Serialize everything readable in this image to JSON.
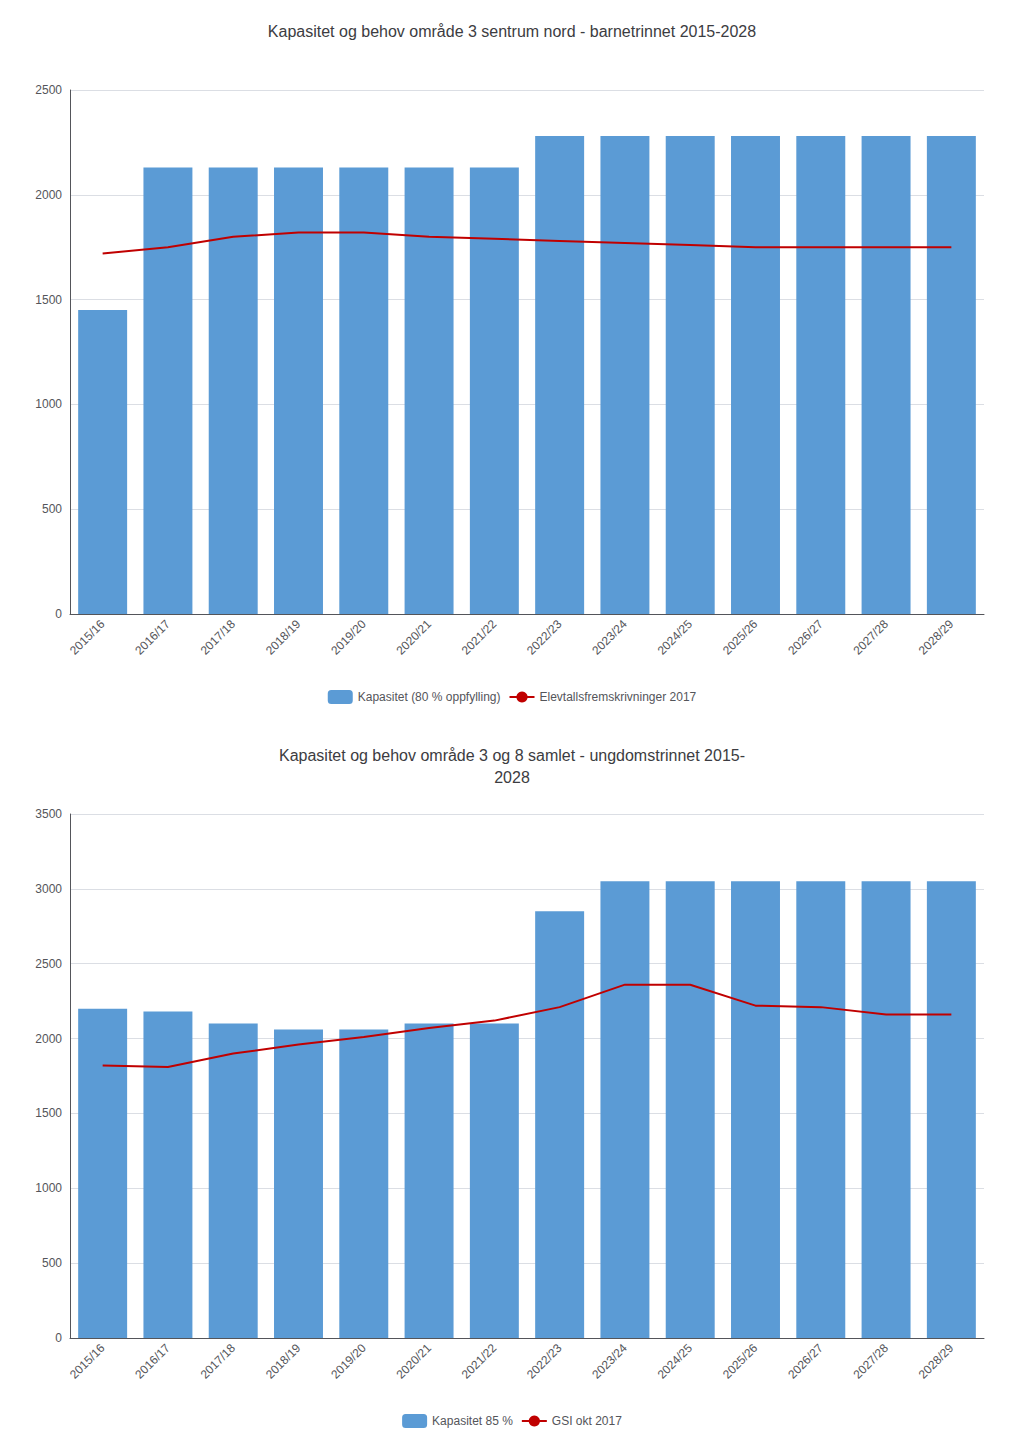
{
  "chart_data": [
    {
      "type": "bar",
      "title": "Kapasitet og behov område 3 sentrum nord - barnetrinnet 2015-2028",
      "categories": [
        "2015/16",
        "2016/17",
        "2017/18",
        "2018/19",
        "2019/20",
        "2020/21",
        "2021/22",
        "2022/23",
        "2023/24",
        "2024/25",
        "2025/26",
        "2026/27",
        "2027/28",
        "2028/29"
      ],
      "series": [
        {
          "name": "Kapasitet (80 % oppfylling)",
          "type": "bar",
          "color": "#5b9bd5",
          "values": [
            1450,
            2130,
            2130,
            2130,
            2130,
            2130,
            2130,
            2280,
            2280,
            2280,
            2280,
            2280,
            2280,
            2280
          ]
        },
        {
          "name": "Elevtallsfremskrivninger 2017",
          "type": "line",
          "color": "#c00000",
          "values": [
            1720,
            1750,
            1800,
            1820,
            1820,
            1800,
            1790,
            1780,
            1770,
            1760,
            1750,
            1750,
            1750,
            1750
          ]
        }
      ],
      "ylim": [
        0,
        2500
      ],
      "yticks": [
        0,
        500,
        1000,
        1500,
        2000,
        2500
      ],
      "grid": true,
      "legend": "bottom"
    },
    {
      "type": "bar",
      "title": "Kapasitet og behov område 3 og 8 samlet - ungdomstrinnet 2015-\n2028",
      "categories": [
        "2015/16",
        "2016/17",
        "2017/18",
        "2018/19",
        "2019/20",
        "2020/21",
        "2021/22",
        "2022/23",
        "2023/24",
        "2024/25",
        "2025/26",
        "2026/27",
        "2027/28",
        "2028/29"
      ],
      "series": [
        {
          "name": "Kapasitet 85 %",
          "type": "bar",
          "color": "#5b9bd5",
          "values": [
            2200,
            2180,
            2100,
            2060,
            2060,
            2100,
            2100,
            2850,
            3050,
            3050,
            3050,
            3050,
            3050,
            3050
          ]
        },
        {
          "name": "GSI okt 2017",
          "type": "line",
          "color": "#c00000",
          "values": [
            1820,
            1810,
            1900,
            1960,
            2010,
            2070,
            2120,
            2210,
            2360,
            2360,
            2220,
            2210,
            2160,
            2160
          ]
        }
      ],
      "ylim": [
        0,
        3500
      ],
      "yticks": [
        0,
        500,
        1000,
        1500,
        2000,
        2500,
        3000,
        3500
      ],
      "grid": true,
      "legend": "bottom"
    }
  ]
}
